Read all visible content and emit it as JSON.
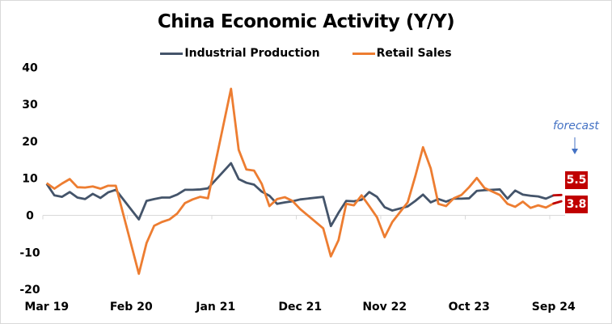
{
  "chart_data": {
    "type": "line",
    "title": "China Economic Activity (Y/Y)",
    "xlabel": "",
    "ylabel": "",
    "ylim": [
      -20,
      40
    ],
    "yticks": [
      40,
      30,
      20,
      10,
      0,
      -10,
      -20
    ],
    "grid": false,
    "legend_position": "top",
    "x": [
      "Mar 19",
      "Apr 19",
      "May 19",
      "Jun 19",
      "Jul 19",
      "Aug 19",
      "Sep 19",
      "Oct 19",
      "Nov 19",
      "Dec 19",
      "Jan 20",
      "Feb 20",
      "Mar 20",
      "Apr 20",
      "May 20",
      "Jun 20",
      "Jul 20",
      "Aug 20",
      "Sep 20",
      "Oct 20",
      "Nov 20",
      "Dec 20",
      "Jan 21",
      "Feb 21",
      "Mar 21",
      "Apr 21",
      "May 21",
      "Jun 21",
      "Jul 21",
      "Aug 21",
      "Sep 21",
      "Oct 21",
      "Nov 21",
      "Dec 21",
      "Jan 22",
      "Feb 22",
      "Mar 22",
      "Apr 22",
      "May 22",
      "Jun 22",
      "Jul 22",
      "Aug 22",
      "Sep 22",
      "Oct 22",
      "Nov 22",
      "Dec 22",
      "Jan 23",
      "Feb 23",
      "Mar 23",
      "Apr 23",
      "May 23",
      "Jun 23",
      "Jul 23",
      "Aug 23",
      "Sep 23",
      "Oct 23",
      "Nov 23",
      "Dec 23",
      "Jan 24",
      "Feb 24",
      "Mar 24",
      "Apr 24",
      "May 24",
      "Jun 24",
      "Jul 24",
      "Aug 24",
      "Sep 24",
      "Oct 24"
    ],
    "xtick_labels": [
      "Mar 19",
      "Feb 20",
      "Jan 21",
      "Dec 21",
      "Nov 22",
      "Oct 23",
      "Sep 24"
    ],
    "series": [
      {
        "name": "Industrial Production",
        "color": "#44546a",
        "values": [
          8.5,
          5.4,
          5.0,
          6.3,
          4.8,
          4.4,
          5.8,
          4.7,
          6.2,
          6.9,
          null,
          null,
          -1.1,
          3.9,
          4.4,
          4.8,
          4.8,
          5.6,
          6.9,
          6.9,
          7.0,
          7.3,
          null,
          null,
          14.1,
          9.8,
          8.8,
          8.3,
          6.4,
          5.3,
          3.1,
          3.5,
          3.8,
          4.3,
          null,
          null,
          5.0,
          -2.9,
          0.7,
          3.9,
          3.8,
          4.2,
          6.3,
          5.0,
          2.2,
          1.3,
          null,
          2.4,
          3.9,
          5.6,
          3.5,
          4.4,
          3.7,
          4.5,
          4.5,
          4.6,
          6.6,
          6.8,
          null,
          7.0,
          4.5,
          6.7,
          5.6,
          5.3,
          5.1,
          4.5,
          5.4,
          5.5
        ]
      },
      {
        "name": "Retail Sales",
        "color": "#ed7d31",
        "values": [
          8.7,
          7.2,
          8.6,
          9.8,
          7.6,
          7.5,
          7.8,
          7.2,
          8.0,
          8.0,
          null,
          null,
          -15.8,
          -7.5,
          -2.8,
          -1.8,
          -1.1,
          0.5,
          3.3,
          4.3,
          5.0,
          4.6,
          null,
          null,
          34.2,
          17.7,
          12.4,
          12.1,
          8.5,
          2.5,
          4.4,
          4.9,
          3.9,
          1.7,
          null,
          null,
          -3.5,
          -11.1,
          -6.7,
          3.1,
          2.7,
          5.4,
          2.5,
          -0.5,
          -5.9,
          -1.8,
          null,
          3.5,
          10.6,
          18.4,
          12.7,
          3.1,
          2.5,
          4.6,
          5.5,
          7.6,
          10.1,
          7.4,
          null,
          5.5,
          3.1,
          2.3,
          3.7,
          2.0,
          2.7,
          2.1,
          3.2,
          3.8
        ]
      }
    ],
    "forecast": {
      "label": "forecast",
      "month": "Oct 24",
      "color": "#c00000",
      "industrial_production": "5.5",
      "retail_sales": "3.8"
    },
    "annotation_color": "#4472c4"
  }
}
